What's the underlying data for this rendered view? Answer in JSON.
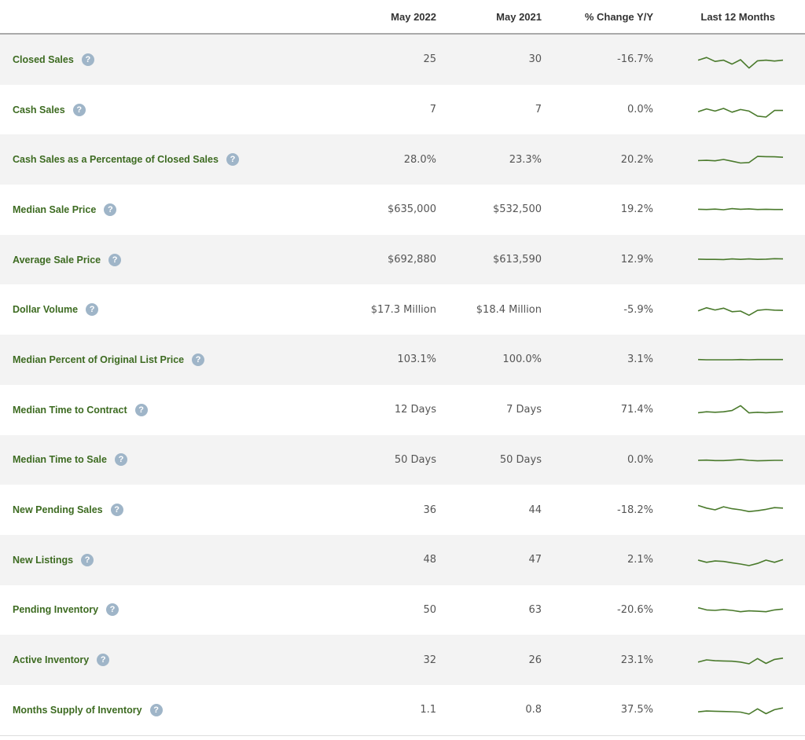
{
  "header": {
    "col_may2022": "May 2022",
    "col_may2021": "May 2021",
    "col_change": "% Change Y/Y",
    "col_last12": "Last 12 Months"
  },
  "help_icon_glyph": "?",
  "colors": {
    "label_green": "#3d6b21",
    "sparkline": "#4a7a2c",
    "help_icon": "#9fb5c8",
    "row_shade": "#f3f3f3"
  },
  "rows": [
    {
      "label": "Closed Sales",
      "may2022": "25",
      "may2021": "30",
      "change": "-16.7%",
      "trend": [
        52,
        40,
        58,
        52,
        70,
        50,
        88,
        55,
        52,
        56,
        52
      ]
    },
    {
      "label": "Cash Sales",
      "may2022": "7",
      "may2021": "7",
      "change": "0.0%",
      "trend": [
        58,
        45,
        55,
        43,
        60,
        48,
        55,
        78,
        82,
        52,
        52
      ]
    },
    {
      "label": "Cash Sales as a Percentage of Closed Sales",
      "may2022": "28.0%",
      "may2021": "23.3%",
      "change": "20.2%",
      "trend": [
        55,
        54,
        56,
        50,
        58,
        66,
        64,
        36,
        37,
        38,
        40
      ]
    },
    {
      "label": "Median Sale Price",
      "may2022": "$635,000",
      "may2021": "$532,500",
      "change": "19.2%",
      "trend": [
        48,
        49,
        47,
        50,
        45,
        48,
        46,
        49,
        48,
        49,
        49
      ]
    },
    {
      "label": "Average Sale Price",
      "may2022": "$692,880",
      "may2021": "$613,590",
      "change": "12.9%",
      "trend": [
        46,
        47,
        47,
        48,
        45,
        47,
        45,
        47,
        46,
        44,
        45
      ]
    },
    {
      "label": "Dollar Volume",
      "may2022": "$17.3 Million",
      "may2021": "$18.4 Million",
      "change": "-5.9%",
      "trend": [
        56,
        42,
        52,
        44,
        60,
        57,
        76,
        54,
        50,
        53,
        54
      ]
    },
    {
      "label": "Median Percent of Original List Price",
      "may2022": "103.1%",
      "may2021": "100.0%",
      "change": "3.1%",
      "trend": [
        49,
        50,
        50,
        50,
        50,
        49,
        50,
        49,
        49,
        49,
        49
      ]
    },
    {
      "label": "Median Time to Contract",
      "may2022": "12 Days",
      "may2021": "7 Days",
      "change": "71.4%",
      "trend": [
        62,
        58,
        60,
        58,
        52,
        30,
        63,
        60,
        62,
        60,
        58
      ]
    },
    {
      "label": "Median Time to Sale",
      "may2022": "50 Days",
      "may2021": "50 Days",
      "change": "0.0%",
      "trend": [
        50,
        49,
        51,
        51,
        49,
        46,
        50,
        52,
        51,
        50,
        50
      ]
    },
    {
      "label": "New Pending Sales",
      "may2022": "36",
      "may2021": "44",
      "change": "-18.2%",
      "trend": [
        30,
        42,
        50,
        36,
        45,
        50,
        58,
        54,
        48,
        40,
        42
      ]
    },
    {
      "label": "New Listings",
      "may2022": "48",
      "may2021": "47",
      "change": "2.1%",
      "trend": [
        50,
        60,
        54,
        56,
        62,
        68,
        75,
        65,
        50,
        60,
        48
      ]
    },
    {
      "label": "Pending Inventory",
      "may2022": "50",
      "may2021": "63",
      "change": "-20.6%",
      "trend": [
        38,
        48,
        50,
        46,
        50,
        56,
        52,
        54,
        56,
        48,
        44
      ]
    },
    {
      "label": "Active Inventory",
      "may2022": "32",
      "may2021": "26",
      "change": "23.1%",
      "trend": [
        60,
        50,
        54,
        55,
        56,
        60,
        68,
        44,
        66,
        48,
        42
      ]
    },
    {
      "label": "Months Supply of Inventory",
      "may2022": "1.1",
      "may2021": "0.8",
      "change": "37.5%",
      "trend": [
        58,
        54,
        55,
        56,
        57,
        59,
        68,
        44,
        66,
        48,
        40
      ]
    }
  ]
}
